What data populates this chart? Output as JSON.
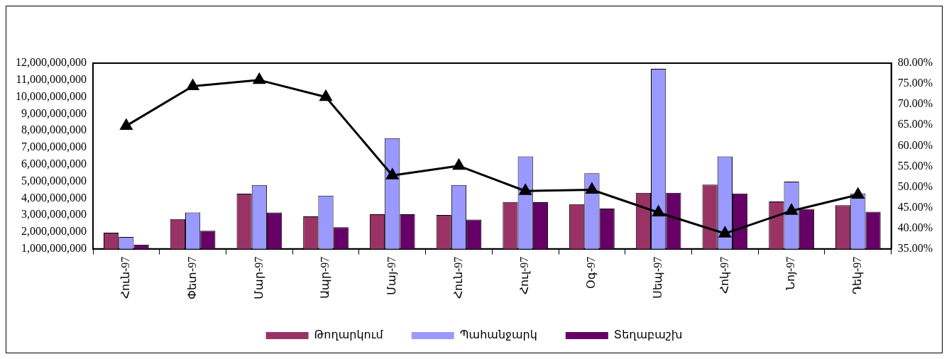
{
  "chart_data": {
    "type": "bar",
    "categories": [
      "Հուն-97",
      "Փետ-97",
      "Մար-97",
      "Ապր-97",
      "Մայ-97",
      "Հուն-97",
      "Հուլ-97",
      "Օգ-97",
      "Սեպ-97",
      "Հոկ-97",
      "Նոյ-97",
      "Դեկ-97"
    ],
    "series": [
      {
        "name": "Թողարկում",
        "color": "#993366",
        "values": [
          1950000000,
          2760000000,
          4270000000,
          2920000000,
          3050000000,
          3000000000,
          3770000000,
          3650000000,
          4320000000,
          4800000000,
          3800000000,
          3580000000
        ]
      },
      {
        "name": "Պահանջարկ",
        "color": "#9999ff",
        "values": [
          1700000000,
          3150000000,
          4780000000,
          4150000000,
          7550000000,
          4780000000,
          6470000000,
          5470000000,
          11660000000,
          6470000000,
          4980000000,
          4280000000
        ]
      },
      {
        "name": "Տեղաբաշխ",
        "color": "#660066",
        "values": [
          1250000000,
          2070000000,
          3150000000,
          2280000000,
          3050000000,
          2730000000,
          3760000000,
          3380000000,
          4320000000,
          4280000000,
          3360000000,
          3190000000
        ]
      },
      {
        "type": "line",
        "axis": "y2",
        "color": "#000000",
        "marker": "triangle",
        "line_style": "solid",
        "values": [
          64.8,
          74.4,
          75.9,
          71.8,
          52.8,
          55.1,
          49.0,
          49.3,
          43.8,
          38.7,
          44.2,
          48.1
        ]
      }
    ],
    "ylim": [
      1000000000,
      12000000000
    ],
    "yticks": [
      {
        "value": 1000000000,
        "label": "1,000,000,000"
      },
      {
        "value": 2000000000,
        "label": "2,000,000,000"
      },
      {
        "value": 3000000000,
        "label": "3,000,000,000"
      },
      {
        "value": 4000000000,
        "label": "4,000,000,000"
      },
      {
        "value": 5000000000,
        "label": "5,000,000,000"
      },
      {
        "value": 6000000000,
        "label": "6,000,000,000"
      },
      {
        "value": 7000000000,
        "label": "7,000,000,000"
      },
      {
        "value": 8000000000,
        "label": "8,000,000,000"
      },
      {
        "value": 9000000000,
        "label": "9,000,000,000"
      },
      {
        "value": 10000000000,
        "label": "10,000,000,000"
      },
      {
        "value": 11000000000,
        "label": "11,000,000,000"
      },
      {
        "value": 12000000000,
        "label": "12,000,000,000"
      }
    ],
    "y2lim": [
      35,
      80
    ],
    "y2ticks": [
      {
        "value": 35,
        "label": "35.00%"
      },
      {
        "value": 40,
        "label": "40.00%"
      },
      {
        "value": 45,
        "label": "45.00%"
      },
      {
        "value": 50,
        "label": "50.00%"
      },
      {
        "value": 55,
        "label": "55.00%"
      },
      {
        "value": 60,
        "label": "60.00%"
      },
      {
        "value": 65,
        "label": "65.00%"
      },
      {
        "value": 70,
        "label": "70.00%"
      },
      {
        "value": 75,
        "label": "75.00%"
      },
      {
        "value": 80,
        "label": "80.00%"
      }
    ],
    "grid": false,
    "legend": "bottom"
  }
}
